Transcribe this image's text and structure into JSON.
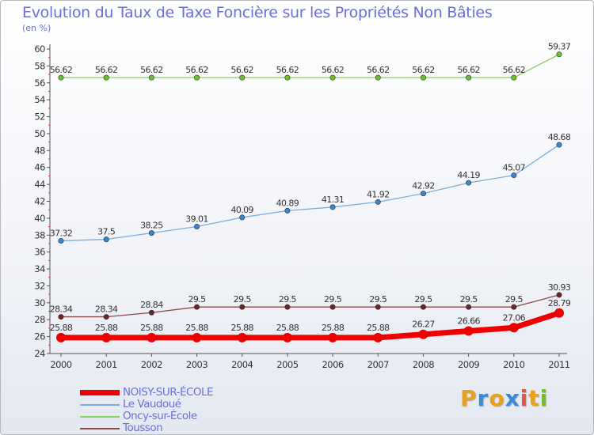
{
  "title": "Evolution du Taux de Taxe Foncière sur les Propriétés Non Bâties",
  "subtitle": "(en %)",
  "logo": {
    "letters": [
      "P",
      "r",
      "o",
      "x",
      "i",
      "t",
      "i"
    ],
    "colors": [
      "#e8a020",
      "#3a8ad8",
      "#e8a020",
      "#3a8ad8",
      "#e85050",
      "#e8a020",
      "#7ab838"
    ]
  },
  "chart_data": {
    "type": "line",
    "title": "Evolution du Taux de Taxe Foncière sur les Propriétés Non Bâties",
    "ylabel": "(en %)",
    "xlabel": "",
    "x": [
      "2000",
      "2001",
      "2002",
      "2003",
      "2004",
      "2005",
      "2006",
      "2007",
      "2008",
      "2009",
      "2010",
      "2011"
    ],
    "yticks": [
      "24",
      "26",
      "28",
      "30",
      "32",
      "34",
      "36",
      "38",
      "40",
      "42",
      "44",
      "46",
      "48",
      "50",
      "52",
      "54",
      "56",
      "58",
      "60"
    ],
    "ylim": [
      24,
      60
    ],
    "grid": false,
    "series": [
      {
        "name": "NOISY-SUR-ÉCOLE",
        "color": "#ee0000",
        "width": 7,
        "values": [
          25.88,
          25.88,
          25.88,
          25.88,
          25.88,
          25.88,
          25.88,
          25.88,
          26.27,
          26.66,
          27.06,
          28.79
        ],
        "labels": [
          "25.88",
          "25.88",
          "25.88",
          "25.88",
          "25.88",
          "25.88",
          "25.88",
          "25.88",
          "26.27",
          "26.66",
          "27.06",
          "28.79"
        ]
      },
      {
        "name": "Le Vaudoué",
        "color": "#7aaee0",
        "width": 1.3,
        "values": [
          37.32,
          37.5,
          38.25,
          39.01,
          40.09,
          40.89,
          41.31,
          41.92,
          42.92,
          44.19,
          45.07,
          48.68
        ],
        "labels": [
          "37.32",
          "37.5",
          "38.25",
          "39.01",
          "40.09",
          "40.89",
          "41.31",
          "41.92",
          "42.92",
          "44.19",
          "45.07",
          "48.68"
        ]
      },
      {
        "name": "Oncy-sur-École",
        "color": "#8ad060",
        "width": 1.3,
        "values": [
          56.62,
          56.62,
          56.62,
          56.62,
          56.62,
          56.62,
          56.62,
          56.62,
          56.62,
          56.62,
          56.62,
          59.37
        ],
        "labels": [
          "56.62",
          "56.62",
          "56.62",
          "56.62",
          "56.62",
          "56.62",
          "56.62",
          "56.62",
          "56.62",
          "56.62",
          "56.62",
          "59.37"
        ]
      },
      {
        "name": "Tousson",
        "color": "#8a4a4a",
        "width": 1.3,
        "values": [
          28.34,
          28.34,
          28.84,
          29.5,
          29.5,
          29.5,
          29.5,
          29.5,
          29.5,
          29.5,
          29.5,
          30.93
        ],
        "labels": [
          "28.34",
          "28.34",
          "28.84",
          "29.5",
          "29.5",
          "29.5",
          "29.5",
          "29.5",
          "29.5",
          "29.5",
          "29.5",
          "30.93"
        ]
      }
    ]
  }
}
